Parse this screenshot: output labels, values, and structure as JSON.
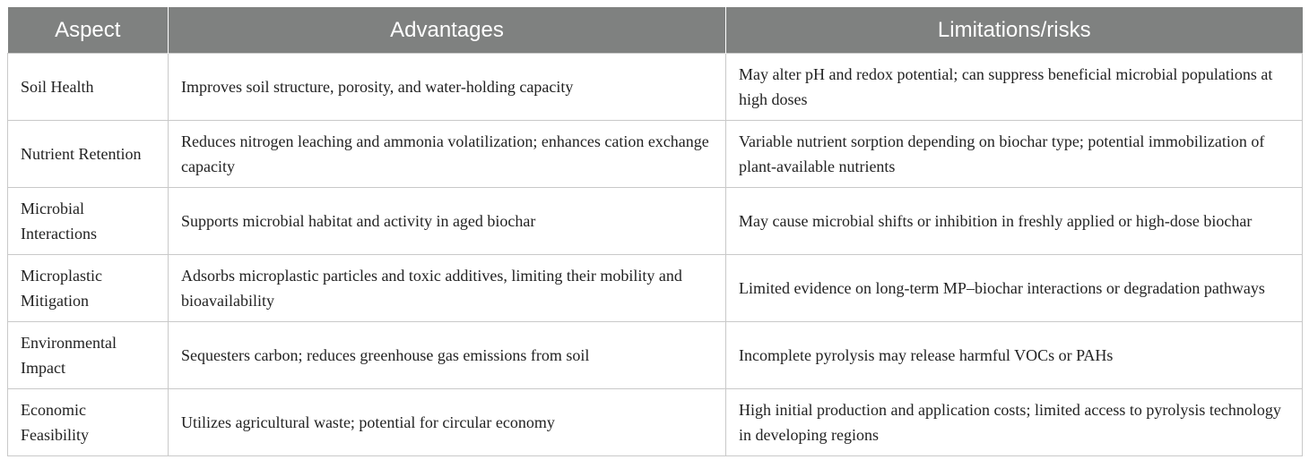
{
  "table": {
    "headers": [
      "Aspect",
      "Advantages",
      "Limitations/risks"
    ],
    "rows": [
      {
        "aspect": "Soil Health",
        "advantages": "Improves soil structure, porosity, and water-holding capacity",
        "limitations": "May alter pH and redox potential; can suppress beneficial microbial populations at high doses"
      },
      {
        "aspect": "Nutrient Retention",
        "advantages": "Reduces nitrogen leaching and ammonia volatilization; enhances cation exchange capacity",
        "limitations": "Variable nutrient sorption depending on biochar type; potential immobilization of plant-available nutrients"
      },
      {
        "aspect": "Microbial Interactions",
        "advantages": "Supports microbial habitat and activity in aged biochar",
        "limitations": "May cause microbial shifts or inhibition in freshly applied or high-dose biochar"
      },
      {
        "aspect": "Microplastic Mitigation",
        "advantages": "Adsorbs microplastic particles and toxic additives, limiting their mobility and bioavailability",
        "limitations": "Limited evidence on long-term MP–biochar interactions or degradation pathways"
      },
      {
        "aspect": "Environmental Impact",
        "advantages": "Sequesters carbon; reduces greenhouse gas emissions from soil",
        "limitations": "Incomplete pyrolysis may release harmful VOCs or PAHs"
      },
      {
        "aspect": "Economic Feasibility",
        "advantages": "Utilizes agricultural waste; potential for circular economy",
        "limitations": "High initial production and application costs; limited access to pyrolysis technology in developing regions"
      }
    ],
    "header_color": "#7f8180",
    "border_color": "#c9c9c9"
  }
}
